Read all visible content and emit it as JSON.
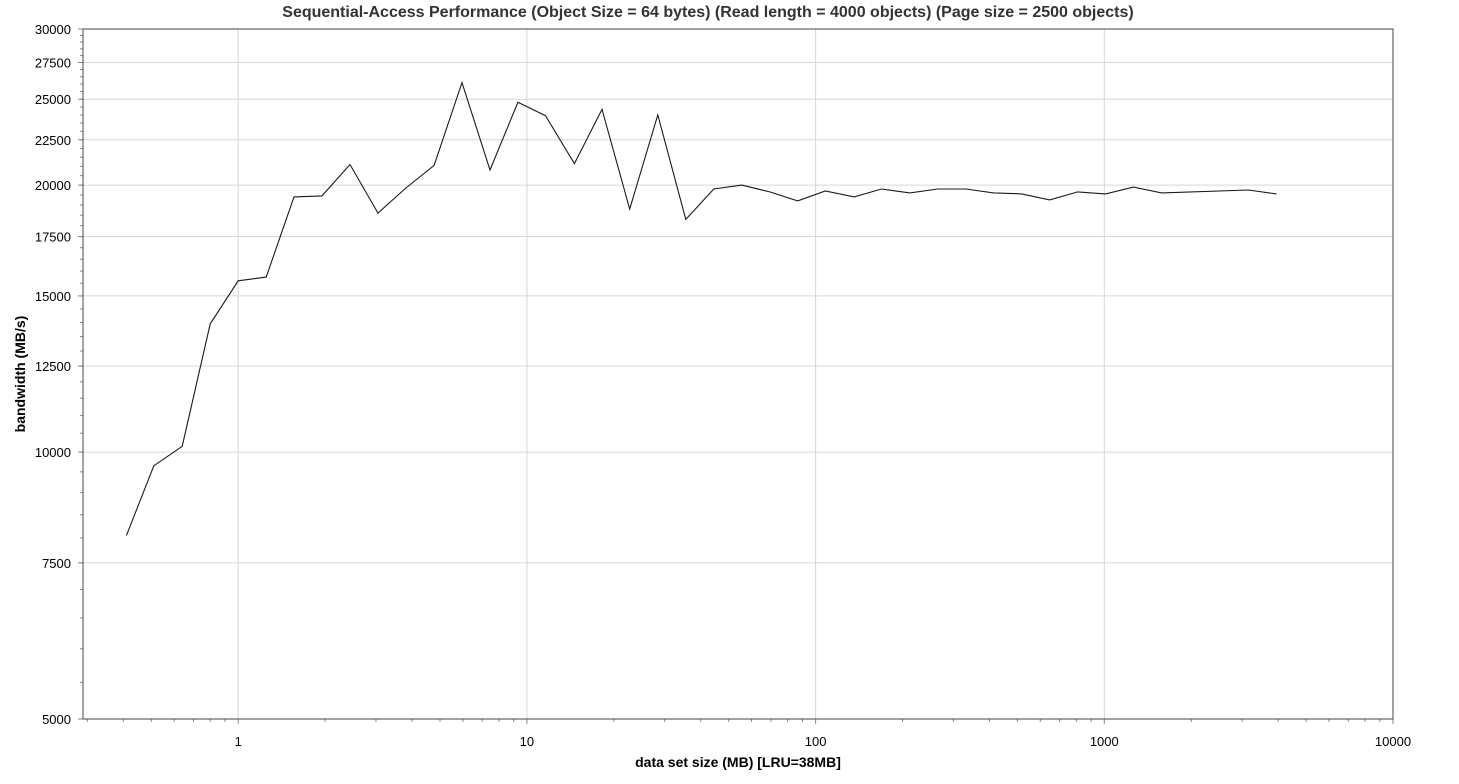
{
  "chart_data": {
    "type": "line",
    "title": "Sequential-Access Performance (Object Size = 64 bytes) (Read length = 4000 objects) (Page size = 2500 objects)",
    "xlabel": "data set size (MB) [LRU=38MB]",
    "ylabel": "bandwidth (MB/s)",
    "x_scale": "log",
    "y_scale": "log",
    "xlim": [
      0.29,
      10000
    ],
    "ylim": [
      5000,
      30000
    ],
    "x_ticks": [
      1,
      10,
      100,
      1000,
      10000
    ],
    "x_tick_labels": [
      "1",
      "10",
      "100",
      "1000",
      "10000"
    ],
    "y_ticks": [
      5000,
      7500,
      10000,
      12500,
      15000,
      17500,
      20000,
      22500,
      25000,
      27500,
      30000
    ],
    "y_tick_labels": [
      "5000",
      "7500",
      "10000",
      "12500",
      "15000",
      "17500",
      "20000",
      "22500",
      "25000",
      "27500",
      "30000"
    ],
    "grid": true,
    "legend": "none",
    "colors": {
      "line": "#1a1a1a",
      "grid": "#d6d6d6",
      "frame": "#444444"
    },
    "series": [
      {
        "x": [
          0.41,
          0.51,
          0.64,
          0.8,
          1.0,
          1.25,
          1.56,
          1.95,
          2.44,
          3.05,
          3.81,
          4.77,
          5.96,
          7.45,
          9.31,
          11.6,
          14.6,
          18.2,
          22.7,
          28.4,
          35.5,
          44.4,
          55.5,
          69.4,
          86.7,
          108,
          136,
          169,
          212,
          265,
          331,
          414,
          517,
          647,
          808,
          1010,
          1263,
          1579,
          3158,
          3948
        ],
        "y": [
          8050,
          9650,
          10150,
          13950,
          15600,
          15750,
          19400,
          19450,
          21100,
          18600,
          19850,
          21050,
          26100,
          20800,
          24800,
          23950,
          21150,
          24350,
          18800,
          24000,
          18300,
          19800,
          20000,
          19650,
          19200,
          19700,
          19400,
          19800,
          19600,
          19800,
          19800,
          19600,
          19550,
          19250,
          19650,
          19550,
          19900,
          19600,
          19750,
          19550
        ]
      }
    ]
  }
}
